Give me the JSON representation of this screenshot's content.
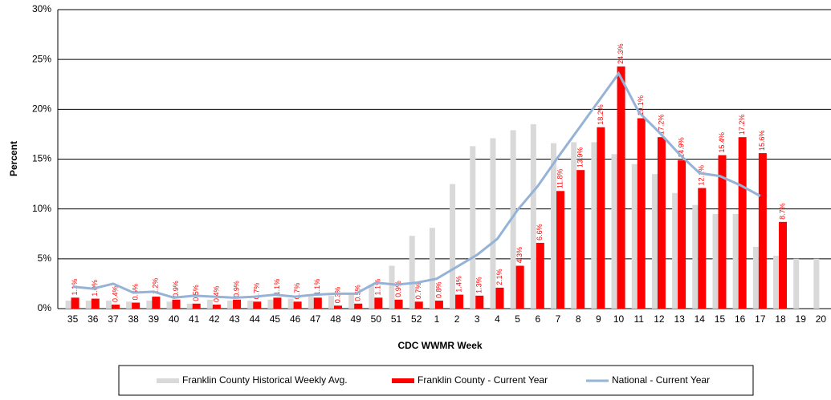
{
  "chart_data": {
    "type": "bar",
    "x_label": "CDC WWMR Week",
    "y_label": "Percent",
    "categories": [
      "35",
      "36",
      "37",
      "38",
      "39",
      "40",
      "41",
      "42",
      "43",
      "44",
      "45",
      "46",
      "47",
      "48",
      "49",
      "50",
      "51",
      "52",
      "1",
      "2",
      "3",
      "4",
      "5",
      "6",
      "7",
      "8",
      "9",
      "10",
      "11",
      "12",
      "13",
      "14",
      "15",
      "16",
      "17",
      "18",
      "19",
      "20"
    ],
    "series": [
      {
        "name": "Franklin County Historical Weekly Avg.",
        "type": "bar",
        "color": "#d9d9d9",
        "values": [
          0.8,
          0.8,
          0.8,
          0.7,
          0.8,
          0.7,
          0.5,
          0.9,
          0.8,
          0.8,
          0.9,
          1.0,
          1.2,
          1.3,
          1.5,
          2.4,
          4.3,
          7.3,
          8.1,
          12.5,
          16.3,
          17.1,
          17.9,
          18.5,
          16.6,
          16.7,
          16.7,
          15.5,
          14.5,
          13.5,
          11.6,
          10.4,
          9.5,
          9.5,
          6.2,
          5.3,
          5.0,
          5.0
        ]
      },
      {
        "name": "Franklin County - Current Year",
        "type": "bar",
        "color": "#ff0000",
        "values": [
          1.1,
          1.0,
          0.4,
          0.6,
          1.2,
          0.9,
          0.5,
          0.4,
          0.9,
          0.7,
          1.1,
          0.7,
          1.1,
          0.3,
          0.5,
          1.1,
          0.9,
          0.7,
          0.8,
          1.4,
          1.3,
          2.1,
          4.3,
          6.6,
          11.8,
          13.9,
          18.2,
          24.3,
          19.1,
          17.2,
          14.9,
          12.1,
          15.4,
          17.2,
          15.6,
          8.7,
          null,
          null
        ],
        "value_labels": [
          "1.1%",
          "1.0%",
          "0.4%",
          "0.6%",
          "1.2%",
          "0.9%",
          "0.5%",
          "0.4%",
          "0.9%",
          "0.7%",
          "1.1%",
          "0.7%",
          "1.1%",
          "0.3%",
          "0.5%",
          "1.1%",
          "0.9%",
          "0.7%",
          "0.8%",
          "1.4%",
          "1.3%",
          "2.1%",
          "4.3%",
          "6.6%",
          "11.8%",
          "13.9%",
          "18.2%",
          "24.3%",
          "19.1%",
          "17.2%",
          "14.9%",
          "12.1%",
          "15.4%",
          "17.2%",
          "15.6%",
          "8.7%",
          null,
          null
        ]
      },
      {
        "name": "National - Current Year",
        "type": "line",
        "color": "#95b3d7",
        "values": [
          2.2,
          2.0,
          2.5,
          1.6,
          1.7,
          1.1,
          1.3,
          1.2,
          1.1,
          1.2,
          1.4,
          1.2,
          1.4,
          1.5,
          1.5,
          2.6,
          2.4,
          2.6,
          3.0,
          4.2,
          5.4,
          7.0,
          9.9,
          12.3,
          15.2,
          18.0,
          20.8,
          23.6,
          19.7,
          17.7,
          15.5,
          13.6,
          13.3,
          12.4,
          11.3,
          null,
          null,
          null
        ]
      }
    ],
    "ylim": [
      0,
      30
    ],
    "yticks": [
      {
        "value": 0,
        "label": "0%"
      },
      {
        "value": 5,
        "label": "5%"
      },
      {
        "value": 10,
        "label": "10%"
      },
      {
        "value": 15,
        "label": "15%"
      },
      {
        "value": 20,
        "label": "20%"
      },
      {
        "value": 25,
        "label": "25%"
      },
      {
        "value": 30,
        "label": "30%"
      }
    ],
    "grid": true
  }
}
